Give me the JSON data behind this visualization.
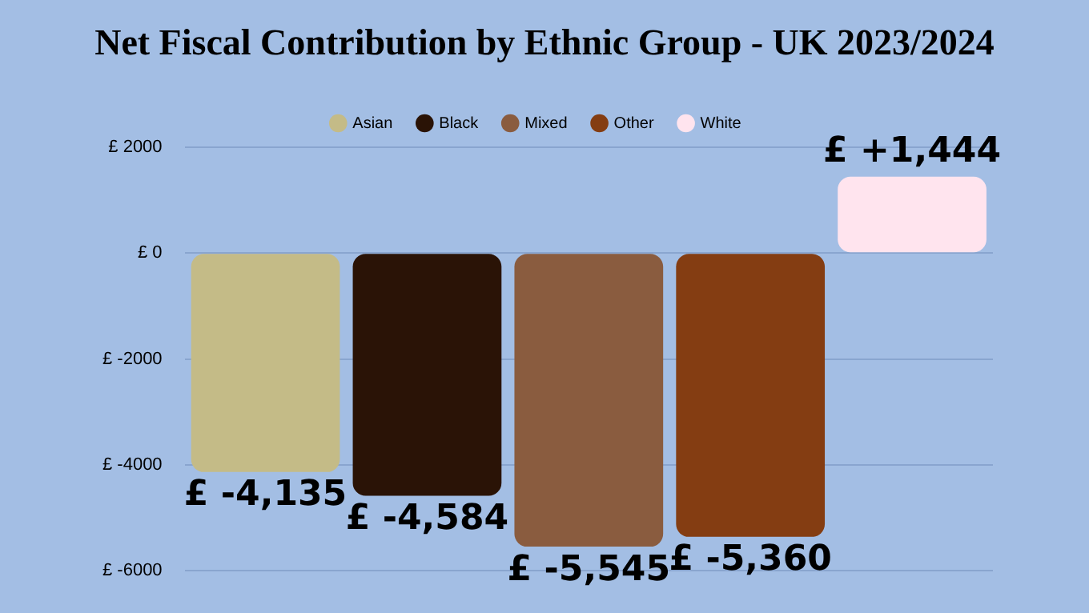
{
  "chart_data": {
    "type": "bar",
    "title": "Net Fiscal Contribution by Ethnic Group - UK 2023/2024",
    "categories": [
      null
    ],
    "series": [
      {
        "name": "Asian",
        "color": "#c4bb87",
        "values": [
          -4135
        ],
        "value_labels": [
          "£ -4,135"
        ]
      },
      {
        "name": "Black",
        "color": "#2a1306",
        "values": [
          -4584
        ],
        "value_labels": [
          "£ -4,584"
        ]
      },
      {
        "name": "Mixed",
        "color": "#8a5c3f",
        "values": [
          -5545
        ],
        "value_labels": [
          "£ -5,545"
        ]
      },
      {
        "name": "Other",
        "color": "#843d12",
        "values": [
          -5360
        ],
        "value_labels": [
          "£ -5,360"
        ]
      },
      {
        "name": "White",
        "color": "#ffe4ee",
        "values": [
          1444
        ],
        "value_labels": [
          "£ +1,444"
        ]
      }
    ],
    "ylim": [
      -6000,
      2000
    ],
    "yticks": [
      {
        "value": 2000,
        "label": "£ 2000"
      },
      {
        "value": 0,
        "label": "£ 0"
      },
      {
        "value": -2000,
        "label": "£ -2000"
      },
      {
        "value": -4000,
        "label": "£ -4000"
      },
      {
        "value": -6000,
        "label": "£ -6000"
      }
    ],
    "grid": "y",
    "legend": "top"
  }
}
